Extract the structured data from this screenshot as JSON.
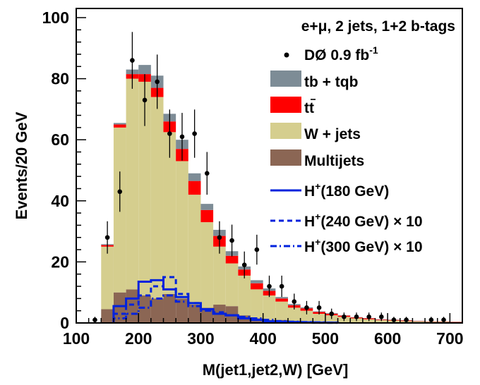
{
  "chart_data": {
    "type": "bar",
    "stacked": true,
    "title": "e+μ, 2 jets, 1+2 b-tags",
    "xlabel": "M(jet1,jet2,W)  [GeV]",
    "ylabel": "Events/20 GeV",
    "xlim": [
      100,
      720
    ],
    "ylim": [
      0,
      103
    ],
    "xticks": [
      100,
      200,
      300,
      400,
      500,
      600,
      700
    ],
    "yticks": [
      0,
      20,
      40,
      60,
      80,
      100
    ],
    "bin_edges": [
      140,
      160,
      180,
      200,
      220,
      240,
      260,
      280,
      300,
      320,
      340,
      360,
      380,
      400,
      420,
      440,
      460,
      480,
      500,
      520,
      540,
      560,
      580,
      600,
      620,
      640,
      660,
      680,
      700,
      720
    ],
    "series": [
      {
        "name": "Multijets",
        "color": "#8b6654",
        "values": [
          4.5,
          10,
          11,
          9,
          8,
          9.5,
          8,
          6,
          5,
          6,
          5.5,
          2.5,
          1.5,
          1,
          1,
          0.5,
          0.5,
          0.3,
          0.3,
          0.2,
          0.2,
          0.1,
          0.1,
          0.1,
          0.1,
          0.1,
          0.1,
          0.1,
          0.1
        ]
      },
      {
        "name": "W + jets",
        "color": "#d5ce8e",
        "values": [
          20.5,
          54,
          69,
          70,
          66,
          53,
          45,
          36,
          28,
          19,
          14,
          13,
          9.5,
          8,
          6,
          4.5,
          3.5,
          2.7,
          2.2,
          1.8,
          1.3,
          1.1,
          0.8,
          0.7,
          0.5,
          0.4,
          0.3,
          0.3,
          0.2
        ]
      },
      {
        "name": "t̄t",
        "color": "#ff0000",
        "values": [
          0.5,
          1,
          1.5,
          2.5,
          3,
          3.5,
          4,
          4.5,
          4,
          3.5,
          2.5,
          2,
          2,
          1.5,
          1,
          0.8,
          0.8,
          0.6,
          0.5,
          0.4,
          0.3,
          0.3,
          0.2,
          0.2,
          0.2,
          0.1,
          0.1,
          0.1,
          0.1
        ]
      },
      {
        "name": "tb + tqb",
        "color": "#7d8c96",
        "values": [
          0.3,
          0.5,
          1.5,
          3,
          4,
          2.5,
          3,
          2.5,
          2,
          2,
          1.5,
          1,
          1,
          0.8,
          0.5,
          0.4,
          0.3,
          0.2,
          0.2,
          0.1,
          0.1,
          0.1,
          0.1,
          0.1,
          0.1,
          0.1,
          0,
          0,
          0
        ]
      }
    ],
    "data_points": {
      "name": "DØ 0.9 fb",
      "name_superscript": "-1",
      "points": [
        {
          "x": 130,
          "y": 1,
          "err": 1
        },
        {
          "x": 150,
          "y": 28,
          "err": 5.3
        },
        {
          "x": 170,
          "y": 43,
          "err": 6.6
        },
        {
          "x": 190,
          "y": 86,
          "err": 9.3
        },
        {
          "x": 210,
          "y": 73,
          "err": 8.5
        },
        {
          "x": 230,
          "y": 79,
          "err": 8.9
        },
        {
          "x": 250,
          "y": 62,
          "err": 7.9
        },
        {
          "x": 270,
          "y": 61,
          "err": 7.8
        },
        {
          "x": 290,
          "y": 62,
          "err": 7.9
        },
        {
          "x": 310,
          "y": 49,
          "err": 7.0
        },
        {
          "x": 330,
          "y": 28,
          "err": 5.3
        },
        {
          "x": 350,
          "y": 27,
          "err": 5.2
        },
        {
          "x": 370,
          "y": 19,
          "err": 4.4
        },
        {
          "x": 390,
          "y": 24,
          "err": 4.9
        },
        {
          "x": 410,
          "y": 12,
          "err": 3.5
        },
        {
          "x": 430,
          "y": 12,
          "err": 3.5
        },
        {
          "x": 450,
          "y": 7,
          "err": 2.6
        },
        {
          "x": 470,
          "y": 5,
          "err": 2.2
        },
        {
          "x": 490,
          "y": 5,
          "err": 2.2
        },
        {
          "x": 510,
          "y": 3,
          "err": 1.7
        },
        {
          "x": 530,
          "y": 2,
          "err": 1.4
        },
        {
          "x": 550,
          "y": 2,
          "err": 1.4
        },
        {
          "x": 570,
          "y": 2,
          "err": 1.4
        },
        {
          "x": 590,
          "y": 2,
          "err": 1.4
        },
        {
          "x": 610,
          "y": 1,
          "err": 1
        },
        {
          "x": 630,
          "y": 1,
          "err": 1
        },
        {
          "x": 670,
          "y": 1,
          "err": 1
        },
        {
          "x": 690,
          "y": 1,
          "err": 1
        }
      ]
    },
    "signal_lines": [
      {
        "name": "H",
        "name_superscript": "+",
        "name_rest": "(180 GeV)",
        "color": "#0022dd",
        "dash": "solid",
        "x0": 160,
        "values": [
          5.5,
          8,
          13.5,
          14,
          11,
          8.5,
          6.5,
          4.5,
          3,
          2.5,
          1.5,
          1,
          0.5,
          0.4,
          0.3,
          0.2,
          0.1,
          0.1
        ]
      },
      {
        "name": "H",
        "name_superscript": "+",
        "name_rest": "(240 GeV)",
        "suffix": "10",
        "color": "#0022dd",
        "dash": "dashed",
        "x0": 160,
        "values": [
          3,
          6,
          9,
          12,
          15,
          9.5,
          6.5,
          4.5,
          3.5,
          2.5,
          1.5,
          1,
          0.5,
          0.4,
          0.3,
          0.2,
          0.1,
          0.1
        ]
      },
      {
        "name": "H",
        "name_superscript": "+",
        "name_rest": "(300 GeV)",
        "suffix": "10",
        "color": "#0022dd",
        "dash": "dashdot",
        "x0": 160,
        "values": [
          1.5,
          3,
          5,
          8,
          9,
          7,
          5.5,
          4,
          3,
          2.5,
          2,
          1.5,
          1,
          0.6,
          0.4,
          0.3,
          0.2,
          0.1
        ]
      }
    ],
    "legend_position": "top-right",
    "grid": false
  }
}
